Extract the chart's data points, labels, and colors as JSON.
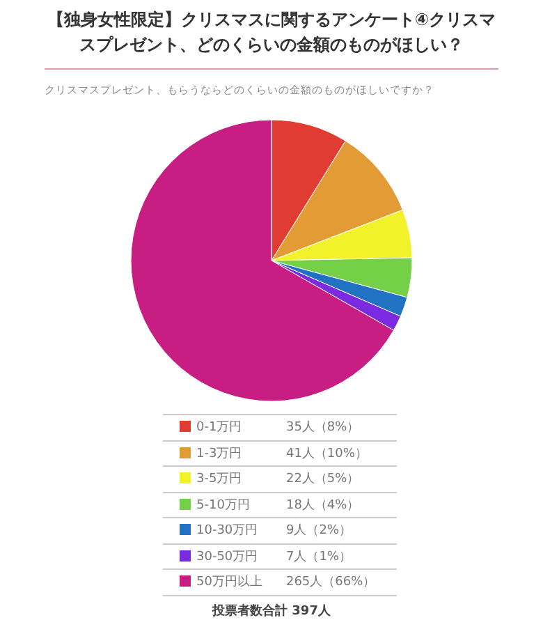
{
  "chart_data": {
    "type": "pie",
    "title": "【独身女性限定】クリスマスに関するアンケート④クリスマスプレゼント、どのくらいの金額のものがほしい？",
    "subtitle": "クリスマスプレゼント、もらうならどのくらいの金額のものがほしいですか？",
    "categories": [
      "0-1万円",
      "1-3万円",
      "3-5万円",
      "5-10万円",
      "10-30万円",
      "30-50万円",
      "50万円以上"
    ],
    "values": [
      35,
      41,
      22,
      18,
      9,
      7,
      265
    ],
    "colors": [
      "#e03c31",
      "#e39b35",
      "#f2f22a",
      "#74d046",
      "#2272c3",
      "#7a2be0",
      "#c81d83"
    ],
    "value_labels": [
      "35人（8%）",
      "41人（10%）",
      "22人（5%）",
      "18人（4%）",
      "9人（2%）",
      "7人（1%）",
      "265人（66%）"
    ],
    "legend": "bottom",
    "annotations": [
      "投票者数合計 397人"
    ]
  }
}
